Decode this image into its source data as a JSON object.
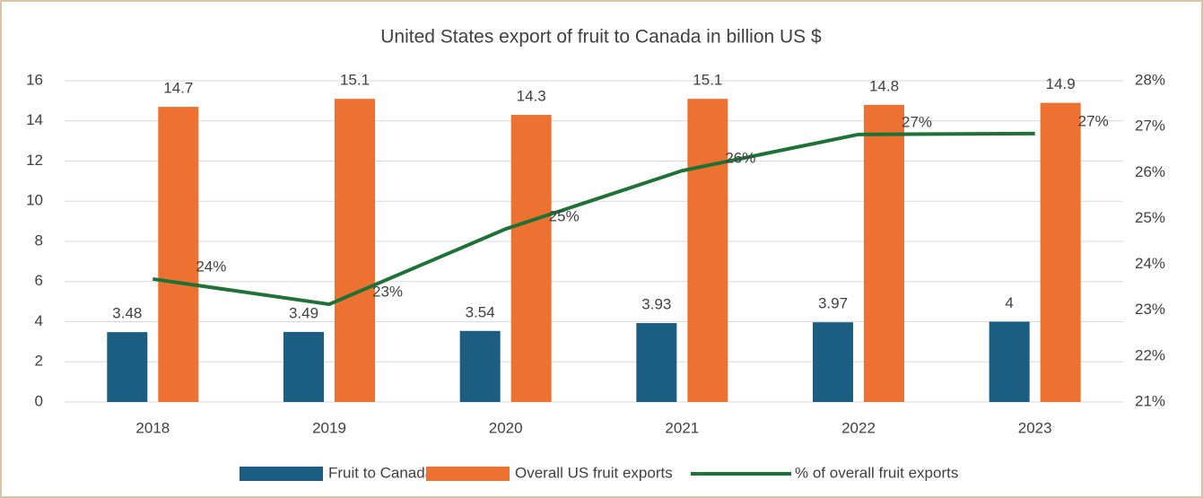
{
  "chart_data": {
    "type": "bar",
    "title": "United States export of fruit to Canada in billion US $",
    "categories": [
      "2018",
      "2019",
      "2020",
      "2021",
      "2022",
      "2023"
    ],
    "series": [
      {
        "name": "Fruit to Canada",
        "type": "bar",
        "color": "#1b5e82",
        "values": [
          3.48,
          3.49,
          3.54,
          3.93,
          3.97,
          4
        ]
      },
      {
        "name": "Overall US fruit exports",
        "type": "bar",
        "color": "#ed7131",
        "values": [
          14.7,
          15.1,
          14.3,
          15.1,
          14.8,
          14.9
        ]
      },
      {
        "name": "% of overall fruit exports",
        "type": "line",
        "axis": "y2",
        "color": "#1e7236",
        "values": [
          23.68,
          23.13,
          24.77,
          26.04,
          26.83,
          26.85
        ],
        "value_labels": [
          "24%",
          "23%",
          "25%",
          "26%",
          "27%",
          "27%"
        ]
      }
    ],
    "ylim": [
      0,
      16
    ],
    "yticks": [
      0,
      2,
      4,
      6,
      8,
      10,
      12,
      14,
      16
    ],
    "y2lim": [
      21,
      28
    ],
    "y2ticks": [
      {
        "value": 21,
        "label": "21%"
      },
      {
        "value": 22,
        "label": "22%"
      },
      {
        "value": 23,
        "label": "23%"
      },
      {
        "value": 24,
        "label": "24%"
      },
      {
        "value": 25,
        "label": "25%"
      },
      {
        "value": 26,
        "label": "26%"
      },
      {
        "value": 27,
        "label": "27%"
      },
      {
        "value": 28,
        "label": "28%"
      }
    ],
    "grid": true,
    "legend": "bottom"
  }
}
